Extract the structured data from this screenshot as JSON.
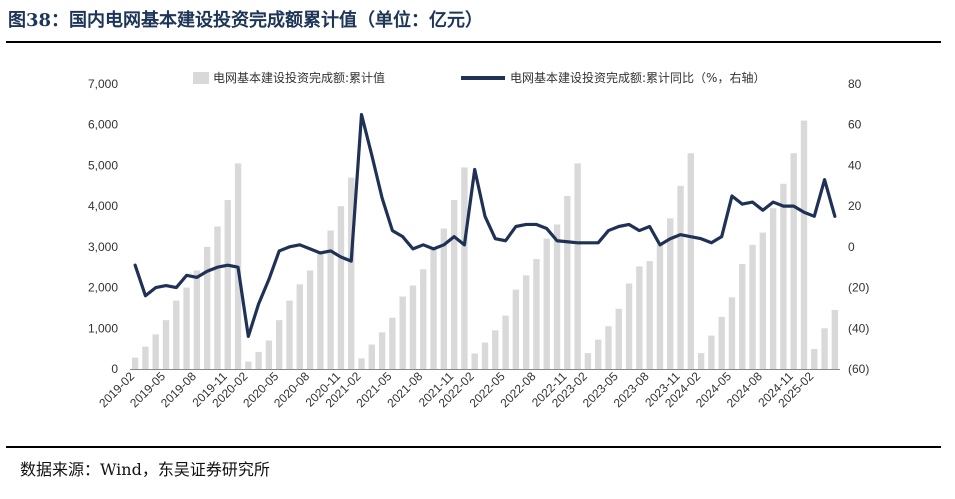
{
  "header": {
    "title": "图38：国内电网基本建设投资完成额累计值（单位：亿元）"
  },
  "footer": {
    "source": "数据来源：Wind，东吴证券研究所"
  },
  "colors": {
    "bar": "#d9d9d9",
    "line": "#1f3256",
    "negative_tick": "#c0504d",
    "title": "#1d3557"
  },
  "chart_data": {
    "type": "bar+line",
    "legend_position": "top",
    "grid": false,
    "x_tick_labels": [
      "2019-02",
      "2019-05",
      "2019-08",
      "2019-11",
      "2020-02",
      "2020-05",
      "2020-08",
      "2020-11",
      "2021-02",
      "2021-05",
      "2021-08",
      "2021-11",
      "2022-02",
      "2022-05",
      "2022-08",
      "2022-11",
      "2023-02",
      "2023-05",
      "2023-08",
      "2023-11",
      "2024-02",
      "2024-05",
      "2024-08",
      "2024-11",
      "2025-02"
    ],
    "y_left": {
      "ylim": [
        0,
        7000
      ],
      "ticks": [
        "0",
        "1,000",
        "2,000",
        "3,000",
        "4,000",
        "5,000",
        "6,000",
        "7,000"
      ]
    },
    "y_right": {
      "ylim": [
        -60,
        80
      ],
      "ticks": [
        "(60)",
        "(40)",
        "(20)",
        "0",
        "20",
        "40",
        "60",
        "80"
      ]
    },
    "x": [
      "2019-02",
      "2019-03",
      "2019-04",
      "2019-05",
      "2019-06",
      "2019-07",
      "2019-08",
      "2019-09",
      "2019-10",
      "2019-11",
      "2019-12",
      "2020-02",
      "2020-03",
      "2020-04",
      "2020-05",
      "2020-06",
      "2020-07",
      "2020-08",
      "2020-09",
      "2020-10",
      "2020-11",
      "2020-12",
      "2021-02",
      "2021-03",
      "2021-04",
      "2021-05",
      "2021-06",
      "2021-07",
      "2021-08",
      "2021-09",
      "2021-10",
      "2021-11",
      "2021-12",
      "2022-02",
      "2022-03",
      "2022-04",
      "2022-05",
      "2022-06",
      "2022-07",
      "2022-08",
      "2022-09",
      "2022-10",
      "2022-11",
      "2022-12",
      "2023-02",
      "2023-03",
      "2023-04",
      "2023-05",
      "2023-06",
      "2023-07",
      "2023-08",
      "2023-09",
      "2023-10",
      "2023-11",
      "2023-12",
      "2024-02",
      "2024-03",
      "2024-04",
      "2024-05",
      "2024-06",
      "2024-07",
      "2024-08",
      "2024-09",
      "2024-10",
      "2024-11",
      "2024-12",
      "2025-02",
      "2025-03",
      "2025-04"
    ],
    "series": [
      {
        "name": "电网基本建设投资完成额:累计值",
        "type": "bar",
        "axis": "left",
        "values": [
          280,
          550,
          850,
          1200,
          1680,
          2000,
          2420,
          3000,
          3500,
          4150,
          5050,
          180,
          420,
          700,
          1200,
          1680,
          2080,
          2420,
          2850,
          3400,
          4000,
          4700,
          260,
          600,
          900,
          1260,
          1780,
          2050,
          2450,
          2950,
          3450,
          4150,
          4950,
          380,
          650,
          950,
          1310,
          1950,
          2300,
          2700,
          3200,
          3550,
          4250,
          5050,
          390,
          720,
          1050,
          1480,
          2100,
          2520,
          2650,
          3050,
          3700,
          4500,
          5300,
          390,
          820,
          1280,
          1760,
          2580,
          3050,
          3350,
          3950,
          4550,
          5300,
          6100,
          490,
          1000,
          1450
        ]
      },
      {
        "name": "电网基本建设投资完成额:累计同比（%，右轴）",
        "type": "line",
        "axis": "right",
        "values": [
          -9,
          -24,
          -20,
          -19,
          -20,
          -14,
          -15,
          -12,
          -10,
          -9,
          -10,
          -44,
          -28,
          -16,
          -2,
          0,
          1,
          -1,
          -3,
          -2,
          -5,
          -7,
          65,
          45,
          24,
          8,
          5,
          -1,
          1,
          -1,
          1,
          5,
          1,
          38,
          15,
          4,
          3,
          10,
          11,
          11,
          9,
          3,
          2.5,
          2,
          2,
          2,
          8,
          10,
          11,
          8,
          10,
          1,
          4,
          6,
          5,
          4,
          2,
          5,
          25,
          21,
          22,
          18,
          22,
          20,
          20,
          17,
          15,
          33,
          15
        ]
      }
    ]
  }
}
